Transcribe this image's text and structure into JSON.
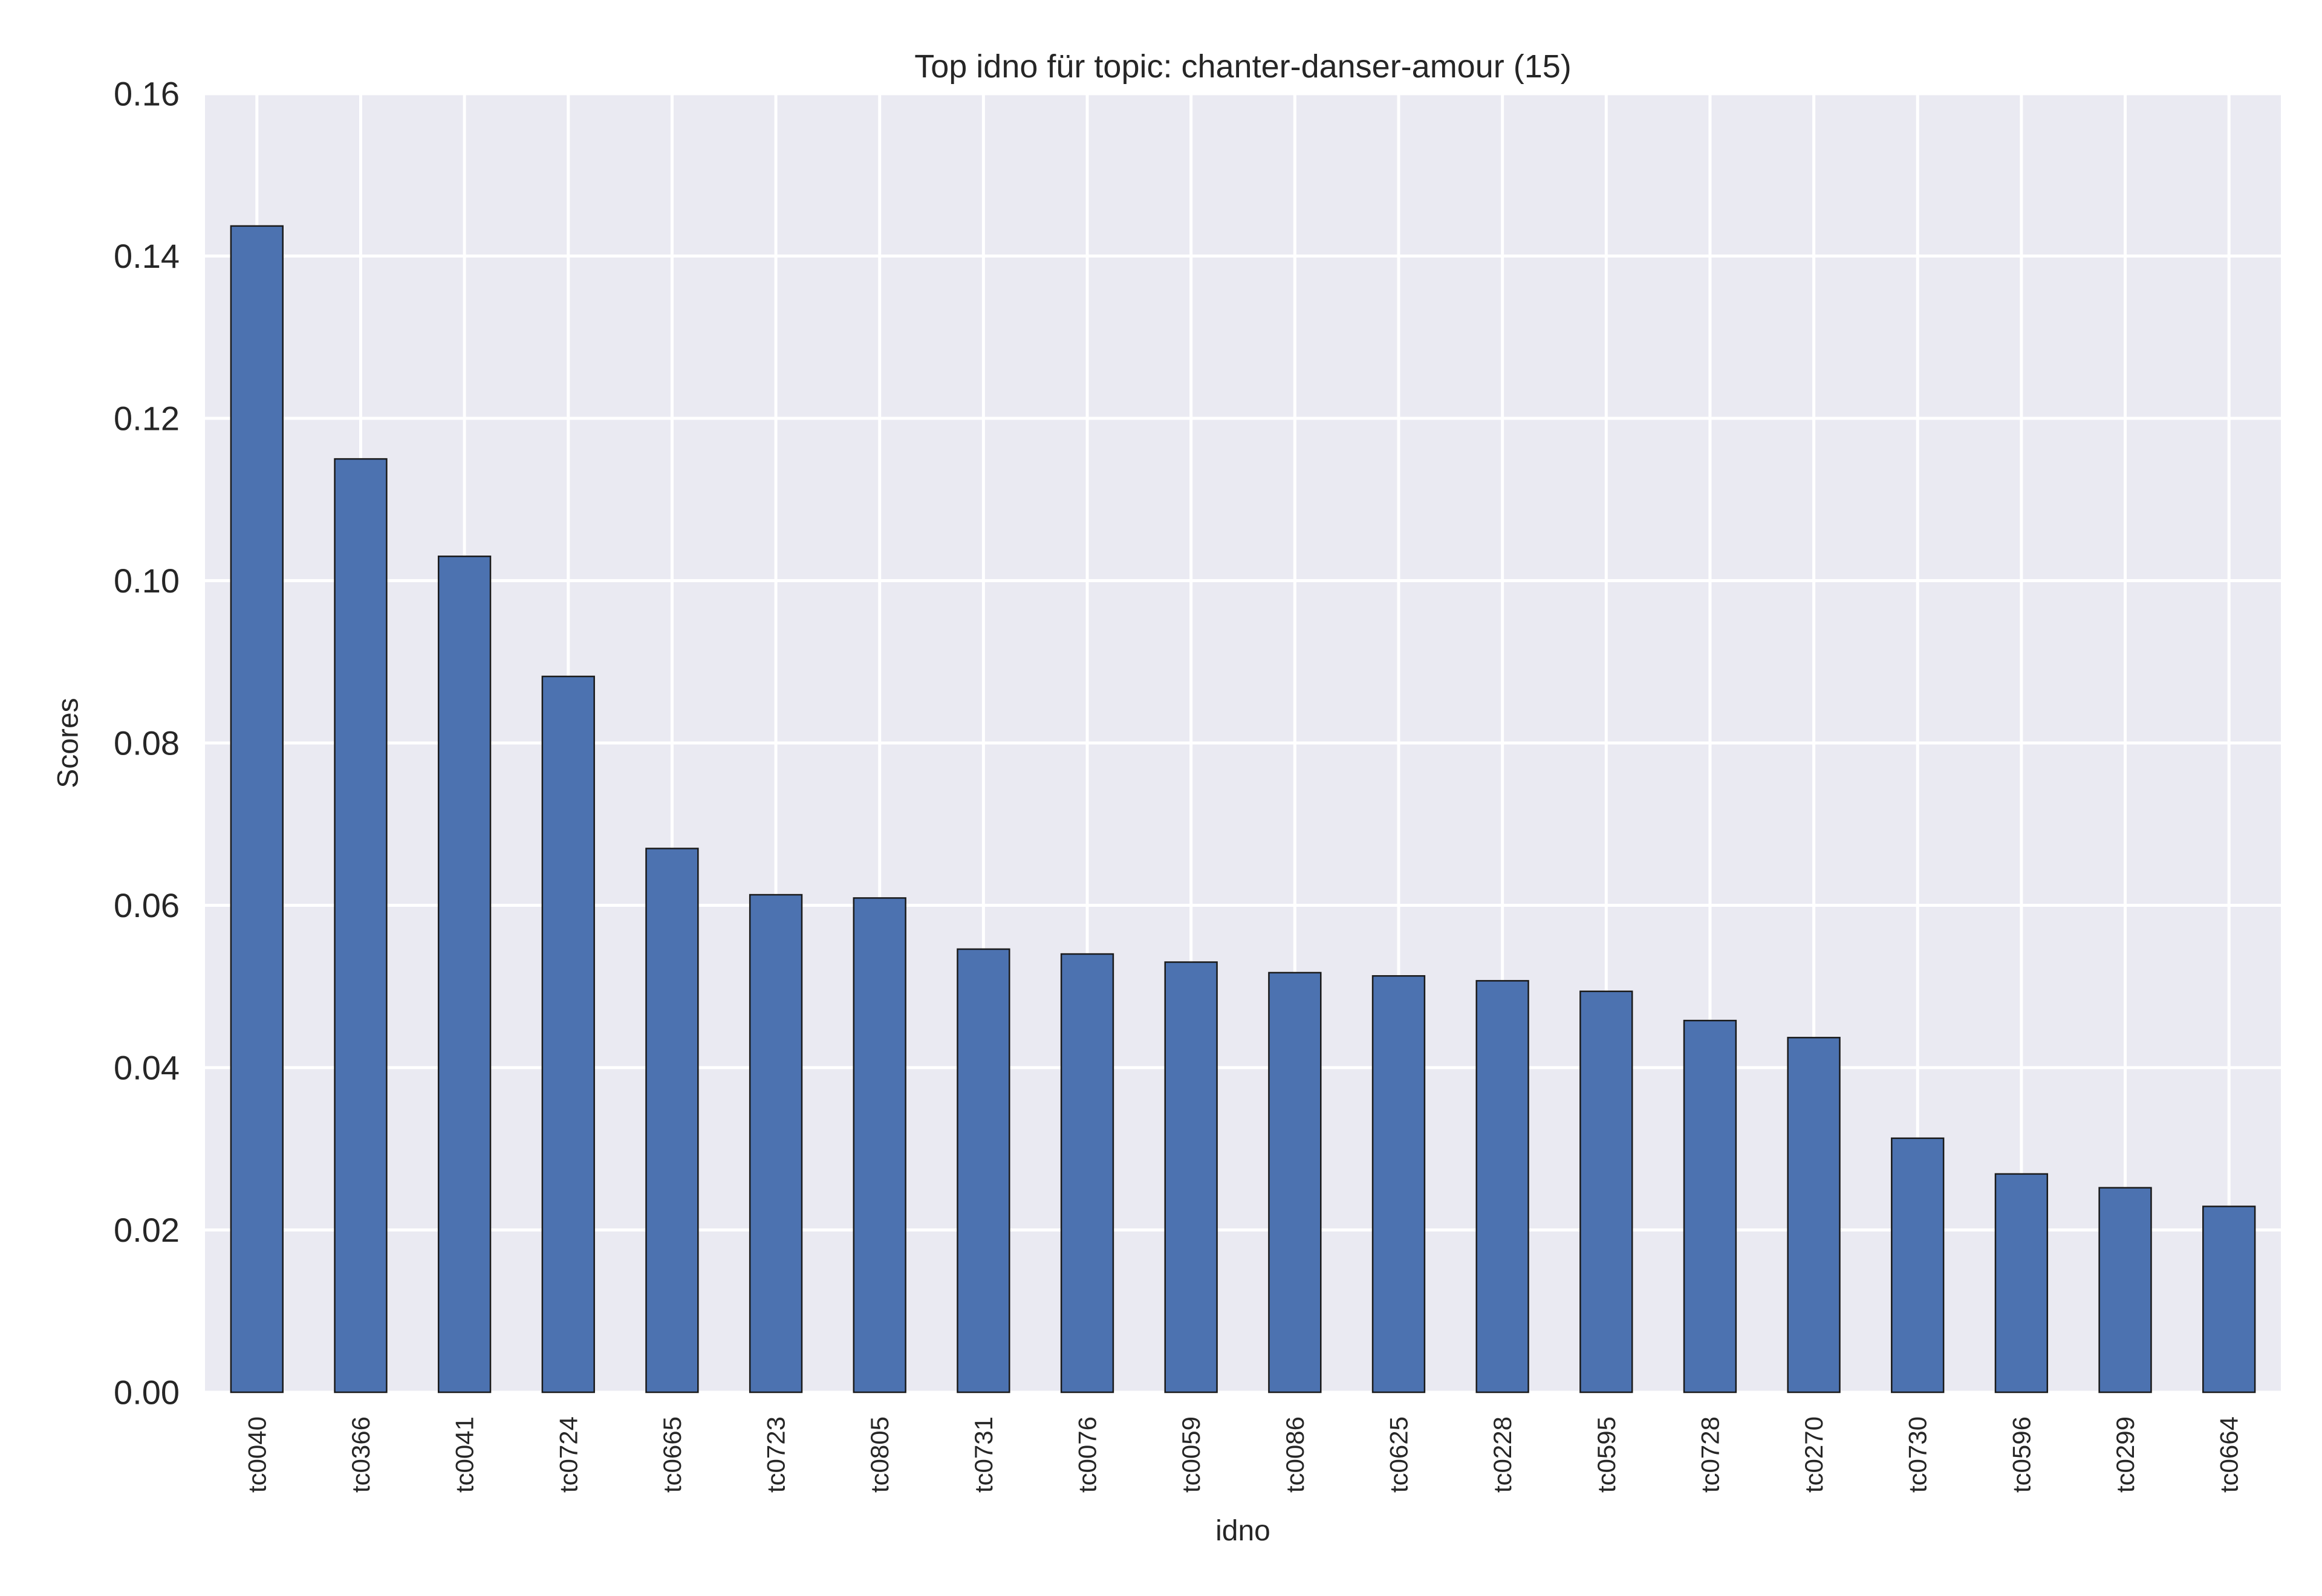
{
  "chart_data": {
    "type": "bar",
    "title": "Top idno für topic: chanter-danser-amour (15)",
    "xlabel": "idno",
    "ylabel": "Scores",
    "ylim": [
      0,
      0.16
    ],
    "yticks": [
      "0.00",
      "0.02",
      "0.04",
      "0.06",
      "0.08",
      "0.10",
      "0.12",
      "0.14",
      "0.16"
    ],
    "grid": true,
    "categories": [
      "tc0040",
      "tc0366",
      "tc0041",
      "tc0724",
      "tc0665",
      "tc0723",
      "tc0805",
      "tc0731",
      "tc0076",
      "tc0059",
      "tc0086",
      "tc0625",
      "tc0228",
      "tc0595",
      "tc0728",
      "tc0270",
      "tc0730",
      "tc0596",
      "tc0299",
      "tc0664"
    ],
    "values": [
      0.1437,
      0.115,
      0.103,
      0.0882,
      0.067,
      0.0613,
      0.0609,
      0.0546,
      0.054,
      0.053,
      0.0517,
      0.0513,
      0.0507,
      0.0494,
      0.0458,
      0.0437,
      0.0313,
      0.0269,
      0.0252,
      0.0229
    ],
    "colors": {
      "plot_background": "#eaeaf2",
      "grid": "#ffffff",
      "bar_fill": "#4c72b0",
      "bar_edge": "#1a1a1a",
      "text": "#262626"
    }
  }
}
